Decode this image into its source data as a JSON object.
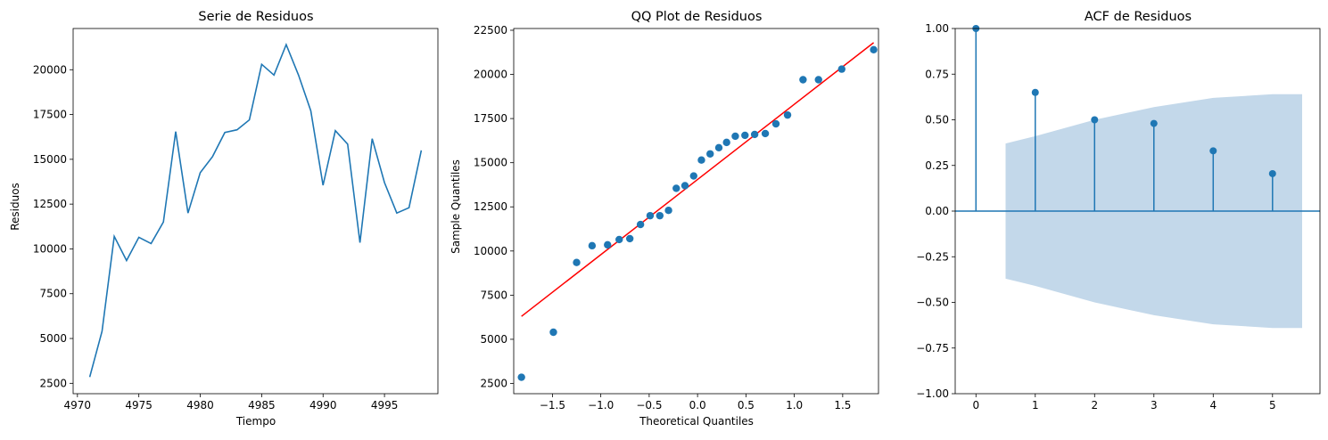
{
  "chart_data": [
    {
      "type": "line",
      "title": "Serie de Residuos",
      "xlabel": "Tiempo",
      "ylabel": "Residuos",
      "xlim": [
        4969.65,
        4999.35
      ],
      "ylim": [
        1920,
        22300
      ],
      "xticks": [
        4970,
        4975,
        4980,
        4985,
        4990,
        4995
      ],
      "xtick_labels": [
        "4970",
        "4975",
        "4980",
        "4985",
        "4990",
        "4995"
      ],
      "yticks": [
        2500,
        5000,
        7500,
        10000,
        12500,
        15000,
        17500,
        20000
      ],
      "ytick_labels": [
        "2500",
        "5000",
        "7500",
        "10000",
        "12500",
        "15000",
        "17500",
        "20000"
      ],
      "grid": false,
      "color": "#1f77b4",
      "x": [
        4971,
        4972,
        4973,
        4974,
        4975,
        4976,
        4977,
        4978,
        4979,
        4980,
        4981,
        4982,
        4983,
        4984,
        4985,
        4986,
        4987,
        4988,
        4989,
        4990,
        4991,
        4992,
        4993,
        4994,
        4995,
        4996,
        4997,
        4998
      ],
      "values": [
        2850,
        5400,
        10700,
        9350,
        10650,
        10300,
        11500,
        16550,
        12000,
        14250,
        15150,
        16500,
        16650,
        17200,
        20300,
        19700,
        21400,
        19700,
        17700,
        13550,
        16600,
        15850,
        10350,
        16150,
        13700,
        12000,
        12300,
        15500
      ]
    },
    {
      "type": "scatter",
      "title": "QQ Plot de Residuos",
      "xlabel": "Theoretical Quantiles",
      "ylabel": "Sample Quantiles",
      "xlim": [
        -1.9,
        1.87
      ],
      "ylim": [
        1920,
        22600
      ],
      "xticks": [
        -1.5,
        -1.0,
        -0.5,
        0.0,
        0.5,
        1.0,
        1.5
      ],
      "xtick_labels": [
        "−1.5",
        "−1.0",
        "−0.5",
        "0.0",
        "0.5",
        "1.0",
        "1.5"
      ],
      "yticks": [
        2500,
        5000,
        7500,
        10000,
        12500,
        15000,
        17500,
        20000,
        22500
      ],
      "ytick_labels": [
        "2500",
        "5000",
        "7500",
        "10000",
        "12500",
        "15000",
        "17500",
        "20000",
        "22500"
      ],
      "grid": false,
      "color": "#1f77b4",
      "line_color": "#ff0000",
      "x": [
        -1.82,
        -1.49,
        -1.25,
        -1.09,
        -0.93,
        -0.81,
        -0.7,
        -0.59,
        -0.49,
        -0.39,
        -0.3,
        -0.22,
        -0.13,
        -0.04,
        0.04,
        0.13,
        0.22,
        0.3,
        0.39,
        0.49,
        0.59,
        0.7,
        0.81,
        0.93,
        1.09,
        1.25,
        1.49,
        1.82
      ],
      "values": [
        2850,
        5400,
        9350,
        10300,
        10350,
        10650,
        10700,
        11500,
        12000,
        12000,
        12300,
        13550,
        13700,
        14250,
        15150,
        15500,
        15850,
        16150,
        16500,
        16550,
        16600,
        16650,
        17200,
        17700,
        19700,
        19700,
        20300,
        21400
      ],
      "fit_line": {
        "x": [
          -1.82,
          1.82
        ],
        "y": [
          6300,
          21800
        ]
      }
    },
    {
      "type": "stem",
      "title": "ACF de Residuos",
      "xlabel": "",
      "ylabel": "",
      "xlim": [
        -0.35,
        5.8
      ],
      "ylim": [
        -1.0,
        1.0
      ],
      "xticks": [
        0,
        1,
        2,
        3,
        4,
        5
      ],
      "xtick_labels": [
        "0",
        "1",
        "2",
        "3",
        "4",
        "5"
      ],
      "yticks": [
        -1.0,
        -0.75,
        -0.5,
        -0.25,
        0.0,
        0.25,
        0.5,
        0.75,
        1.0
      ],
      "ytick_labels": [
        "−1.00",
        "−0.75",
        "−0.50",
        "−0.25",
        "0.00",
        "0.25",
        "0.50",
        "0.75",
        "1.00"
      ],
      "grid": false,
      "color": "#1f77b4",
      "band_color": "#c3d8ea",
      "lags": [
        0,
        1,
        2,
        3,
        4,
        5
      ],
      "values": [
        1.0,
        0.65,
        0.5,
        0.48,
        0.33,
        0.205
      ],
      "confidence_band": {
        "x": [
          0.5,
          1,
          2,
          3,
          4,
          5,
          5.5
        ],
        "upper": [
          0.37,
          0.41,
          0.5,
          0.57,
          0.62,
          0.64,
          0.64
        ]
      }
    }
  ]
}
